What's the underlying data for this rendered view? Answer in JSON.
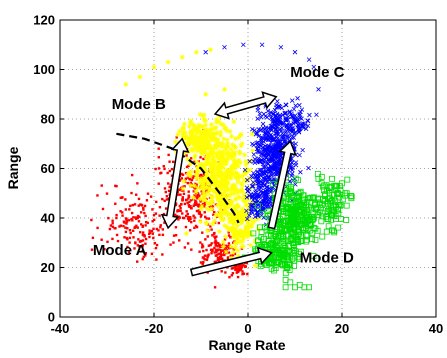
{
  "chart_data": {
    "type": "scatter",
    "title": "",
    "xlabel": "Range Rate",
    "ylabel": "Range",
    "xlim": [
      -40,
      40
    ],
    "ylim": [
      0,
      120
    ],
    "x_ticks": [
      -40,
      -20,
      0,
      20,
      40
    ],
    "y_ticks": [
      0,
      20,
      40,
      60,
      80,
      100,
      120
    ],
    "grid": true,
    "colors": {
      "red": "#ff0000",
      "yellow": "#ffff00",
      "blue": "#0000ff",
      "green": "#00dd00",
      "dashed": "#000000",
      "arrow_fill": "#ffffff",
      "arrow_stroke": "#000000"
    },
    "series": [
      {
        "marker": "dot",
        "color": "#ff0000",
        "regions": [
          {
            "cx": -12,
            "cy": 50,
            "sx": 6,
            "sy": 14,
            "n": 320
          },
          {
            "cx": -24,
            "cy": 38,
            "sx": 6,
            "sy": 12,
            "n": 160
          },
          {
            "cx": -6,
            "cy": 26,
            "sx": 4,
            "sy": 6,
            "n": 140
          },
          {
            "cx": -2,
            "cy": 20,
            "sx": 2,
            "sy": 3,
            "n": 60
          }
        ],
        "points": [
          [
            -33,
            32
          ],
          [
            -28,
            40
          ],
          [
            -19,
            68
          ],
          [
            -7,
            12
          ],
          [
            -32,
            36
          ]
        ]
      },
      {
        "marker": "star",
        "color": "#ffff00",
        "regions": [
          {
            "cx": -6,
            "cy": 58,
            "sx": 5,
            "sy": 14,
            "n": 420
          },
          {
            "cx": -10,
            "cy": 72,
            "sx": 4,
            "sy": 6,
            "n": 160
          },
          {
            "cx": -2,
            "cy": 38,
            "sx": 3,
            "sy": 10,
            "n": 180
          }
        ],
        "points": [
          [
            -26,
            94
          ],
          [
            -23,
            97
          ],
          [
            -20,
            101
          ],
          [
            -17,
            103
          ],
          [
            -14,
            105
          ],
          [
            -11,
            107
          ],
          [
            -8,
            108
          ],
          [
            -9,
            90
          ],
          [
            -5,
            92
          ],
          [
            -3,
            85
          ],
          [
            -6,
            81
          ]
        ]
      },
      {
        "marker": "x",
        "color": "#0000ff",
        "regions": [
          {
            "cx": 6,
            "cy": 66,
            "sx": 4,
            "sy": 12,
            "n": 480
          },
          {
            "cx": 3,
            "cy": 48,
            "sx": 3,
            "sy": 8,
            "n": 150
          },
          {
            "cx": 8,
            "cy": 80,
            "sx": 4,
            "sy": 6,
            "n": 120
          }
        ],
        "points": [
          [
            -9,
            107
          ],
          [
            -5,
            109
          ],
          [
            -1,
            110
          ],
          [
            3,
            110
          ],
          [
            7,
            109
          ],
          [
            10,
            107
          ],
          [
            13,
            104
          ],
          [
            14,
            101
          ],
          [
            15,
            92
          ]
        ]
      },
      {
        "marker": "square",
        "color": "#00dd00",
        "regions": [
          {
            "cx": 10,
            "cy": 40,
            "sx": 5,
            "sy": 10,
            "n": 300
          },
          {
            "cx": 6,
            "cy": 26,
            "sx": 4,
            "sy": 6,
            "n": 160
          },
          {
            "cx": 18,
            "cy": 46,
            "sx": 3,
            "sy": 8,
            "n": 90
          }
        ],
        "points": [
          [
            8,
            12
          ],
          [
            9,
            14
          ],
          [
            10,
            12
          ],
          [
            11,
            13
          ],
          [
            12,
            12
          ],
          [
            13,
            12
          ],
          [
            8,
            15
          ],
          [
            21,
            50
          ],
          [
            22,
            48
          ],
          [
            20,
            54
          ],
          [
            21,
            45
          ]
        ]
      }
    ],
    "dashed_curve": [
      [
        -28,
        74
      ],
      [
        -22,
        72
      ],
      [
        -16,
        68
      ],
      [
        -10,
        60
      ],
      [
        -6,
        50
      ],
      [
        -3,
        42
      ],
      [
        -2,
        38
      ]
    ],
    "arrows": [
      {
        "from": [
          -7,
          82
        ],
        "to": [
          6,
          89
        ],
        "double": true
      },
      {
        "from": [
          -14,
          72
        ],
        "to": [
          -17,
          36
        ],
        "double": true
      },
      {
        "from": [
          5,
          36
        ],
        "to": [
          9,
          71
        ],
        "double": false
      },
      {
        "from": [
          -12,
          18
        ],
        "to": [
          5,
          26
        ],
        "double": false
      }
    ],
    "annotations": [
      {
        "text": "Mode A",
        "x": -33,
        "y": 25
      },
      {
        "text": "Mode B",
        "x": -29,
        "y": 84
      },
      {
        "text": "Mode C",
        "x": 9,
        "y": 97
      },
      {
        "text": "Mode D",
        "x": 11,
        "y": 22
      }
    ]
  }
}
